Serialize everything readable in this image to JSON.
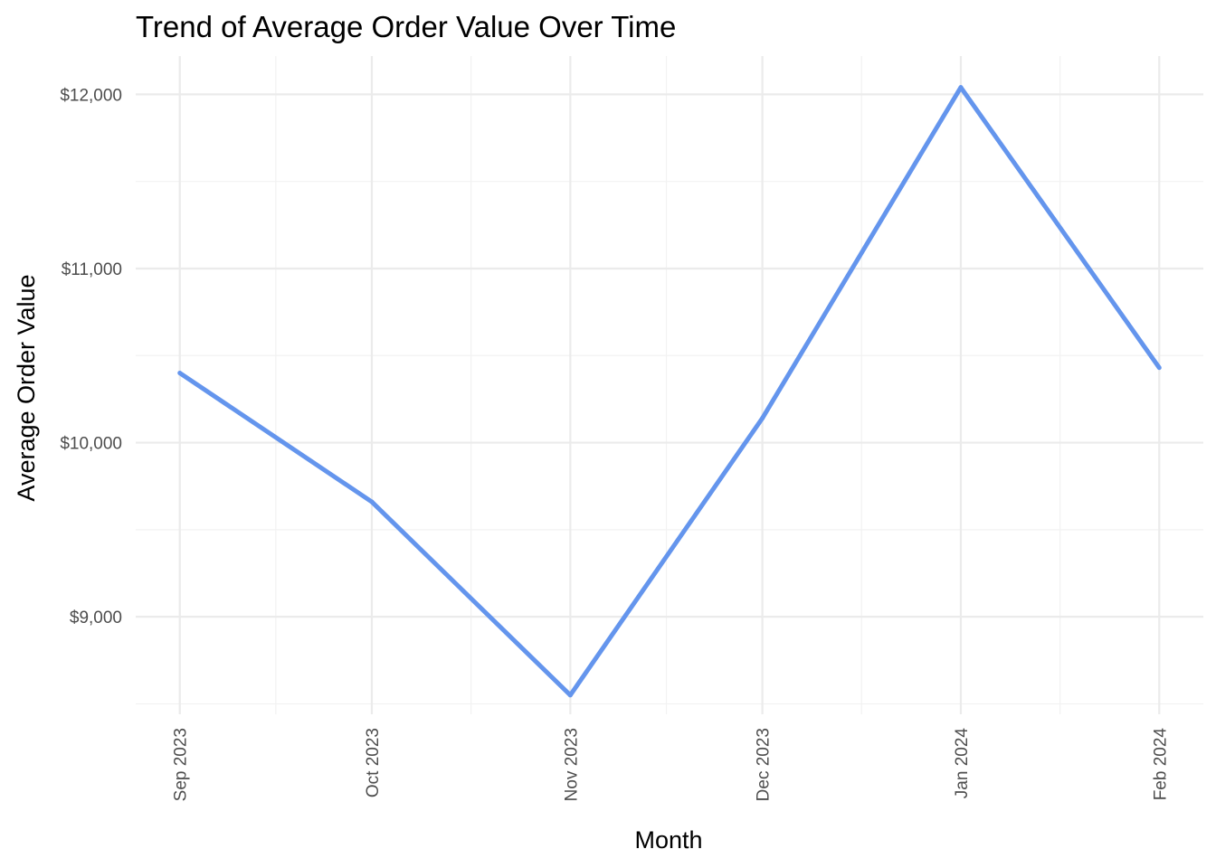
{
  "chart_data": {
    "type": "line",
    "title": "Trend of Average Order Value Over Time",
    "xlabel": "Month",
    "ylabel": "Average Order Value",
    "x": [
      "2023-09-01",
      "2023-10-01",
      "2023-11-01",
      "2023-12-01",
      "2024-01-01",
      "2024-02-01"
    ],
    "x_tick_labels": [
      "Sep 2023",
      "Oct 2023",
      "Nov 2023",
      "Dec 2023",
      "Jan 2024",
      "Feb 2024"
    ],
    "series": [
      {
        "values": [
          10400,
          9660,
          8550,
          10140,
          12040,
          10430
        ],
        "color": "#6495ed"
      }
    ],
    "y_ticks": [
      9000,
      10000,
      11000,
      12000
    ],
    "y_tick_labels": [
      "$9,000",
      "$10,000",
      "$11,000",
      "$12,000"
    ],
    "ylim": [
      8440,
      12220
    ],
    "grid": true,
    "legend": "none"
  }
}
